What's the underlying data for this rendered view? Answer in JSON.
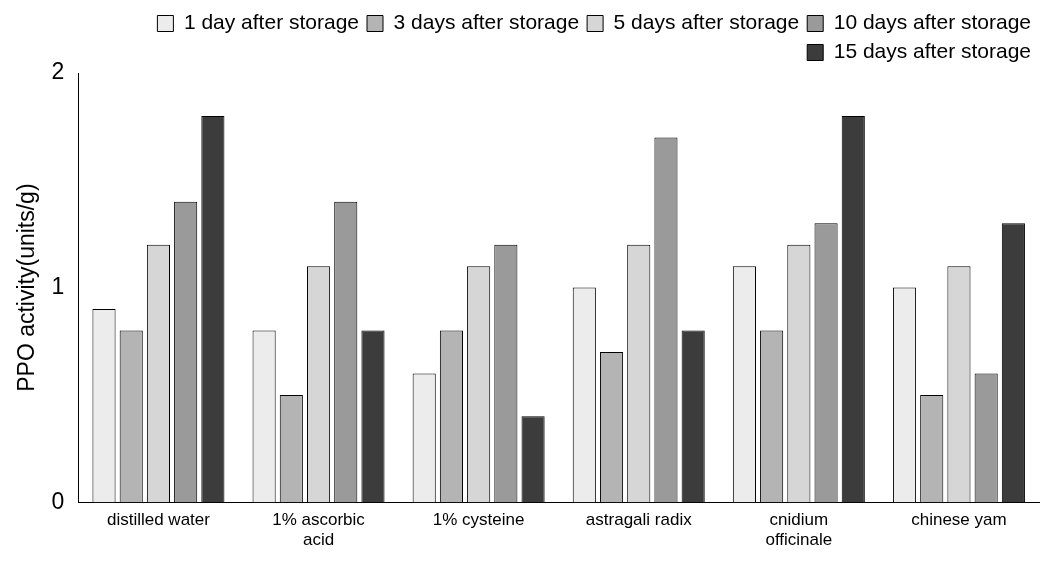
{
  "chart_data": {
    "type": "bar",
    "ylabel": "PPO activity(units/g)",
    "categories": [
      "distilled water",
      "1% ascorbic acid",
      "1% cysteine",
      "astragali radix",
      "cnidium officinale",
      "chinese yam"
    ],
    "series": [
      {
        "name": "1 day after storage",
        "color": "#ececec",
        "values": [
          0.9,
          0.8,
          0.6,
          1.0,
          1.1,
          1.0
        ]
      },
      {
        "name": "3 days after storage",
        "color": "#b4b4b4",
        "values": [
          0.8,
          0.5,
          0.8,
          0.7,
          0.8,
          0.5
        ]
      },
      {
        "name": "5 days after storage",
        "color": "#d6d6d6",
        "values": [
          1.2,
          1.1,
          1.1,
          1.2,
          1.2,
          1.1
        ]
      },
      {
        "name": "10 days after storage",
        "color": "#9a9a9a",
        "values": [
          1.4,
          1.4,
          1.2,
          1.7,
          1.3,
          0.6
        ]
      },
      {
        "name": "15 days after storage",
        "color": "#3c3c3c",
        "values": [
          1.8,
          0.8,
          0.4,
          0.8,
          1.8,
          1.3
        ]
      }
    ],
    "ylim": [
      0,
      2
    ],
    "yticks": [
      0,
      1,
      2
    ],
    "grid": false,
    "legend": "top right"
  }
}
